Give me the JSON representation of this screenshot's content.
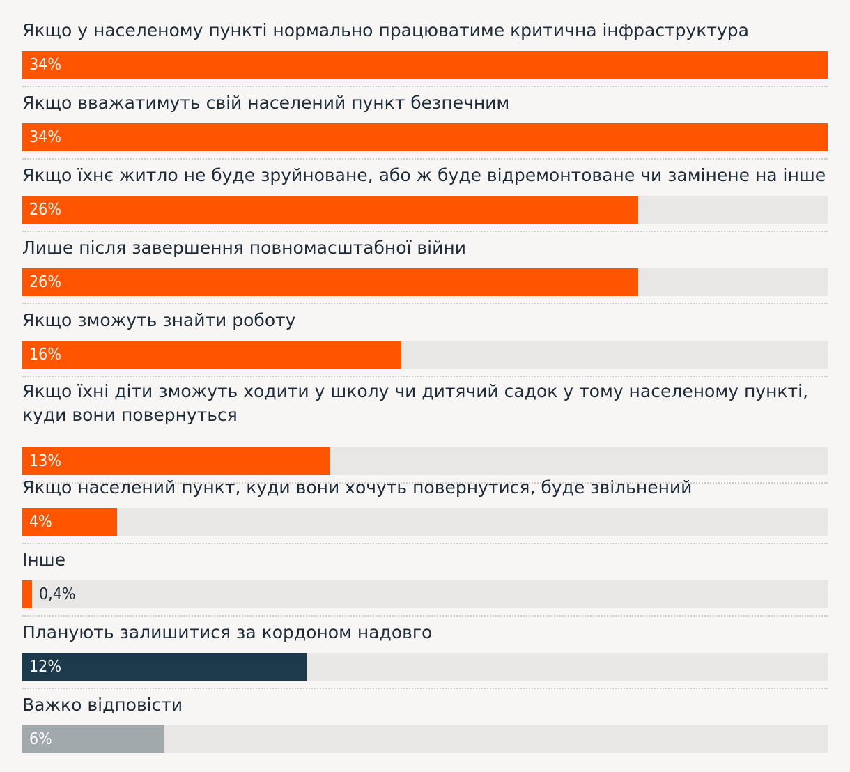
{
  "colors": {
    "background": "#f7f6f4",
    "track": "#e8e7e5",
    "orange": "#ff5500",
    "navy": "#1c3a4c",
    "gray": "#a1a9ad",
    "text": "#1e2b38"
  },
  "chart_data": {
    "type": "bar",
    "orientation": "horizontal",
    "xlim": [
      0,
      34
    ],
    "categories": [
      "Якщо у населеному пункті нормально працюватиме критична інфраструктура",
      "Якщо вважатимуть свій населений пункт безпечним",
      "Якщо їхнє житло не буде зруйноване, або ж буде відремонтоване чи замінене на інше",
      "Лише після завершення повномасштабної війни",
      "Якщо зможуть знайти роботу",
      "Якщо їхні діти зможуть ходити у школу чи дитячий садок у тому населеному пункті, куди вони повернуться",
      "Якщо населений пункт, куди вони хочуть повернутися, буде звільнений",
      "Інше",
      "Планують залишитися за кордоном надовго",
      "Важко відповісти"
    ],
    "values": [
      34,
      34,
      26,
      26,
      16,
      13,
      4,
      0.4,
      12,
      6
    ],
    "value_labels": [
      "34%",
      "34%",
      "26%",
      "26%",
      "16%",
      "13%",
      "4%",
      "0,4%",
      "12%",
      "6%"
    ],
    "bar_colors": [
      "#ff5500",
      "#ff5500",
      "#ff5500",
      "#ff5500",
      "#ff5500",
      "#ff5500",
      "#ff5500",
      "#ff5500",
      "#1c3a4c",
      "#a1a9ad"
    ]
  }
}
